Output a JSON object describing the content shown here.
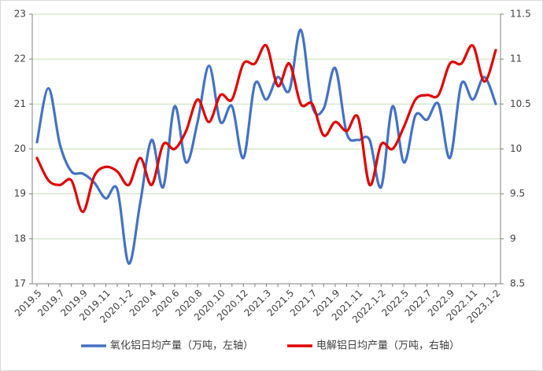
{
  "chart_data": {
    "type": "line",
    "categories": [
      "2019.5",
      null,
      "2019.7",
      null,
      "2019.9",
      null,
      "2019.11",
      null,
      "2020.1-2",
      null,
      "2020.4",
      null,
      "2020.6",
      null,
      "2020.8",
      null,
      "2020.10",
      null,
      "2020.12",
      null,
      "2021.3",
      null,
      "2021.5",
      null,
      "2021.7",
      null,
      "2021.9",
      null,
      "2021.11",
      null,
      "2022.1-2",
      null,
      "2022.5",
      null,
      "2022.7",
      null,
      "2022.9",
      null,
      "2022.11",
      null,
      "2023.1-2"
    ],
    "series": [
      {
        "name": "氧化铝日均产量（万吨，左轴）",
        "color": "#4472c4",
        "axis": "y",
        "values": [
          20.15,
          21.35,
          20.1,
          19.5,
          19.45,
          19.25,
          18.9,
          19.1,
          17.45,
          18.8,
          20.2,
          19.15,
          20.95,
          19.7,
          20.6,
          21.85,
          20.6,
          20.95,
          19.8,
          21.45,
          21.1,
          21.6,
          21.3,
          22.65,
          20.95,
          20.9,
          21.8,
          20.35,
          20.2,
          20.2,
          19.15,
          20.95,
          19.7,
          20.75,
          20.65,
          21.0,
          19.8,
          21.45,
          21.1,
          21.6,
          21.0
        ]
      },
      {
        "name": "电解铝日均产量（万吨，右轴）",
        "color": "#e00000",
        "axis": "y2",
        "values": [
          9.9,
          9.65,
          9.6,
          9.65,
          9.3,
          9.7,
          9.8,
          9.75,
          9.6,
          9.9,
          9.6,
          10.05,
          10.0,
          10.2,
          10.55,
          10.3,
          10.6,
          10.55,
          10.95,
          10.95,
          11.15,
          10.7,
          10.95,
          10.5,
          10.5,
          10.15,
          10.3,
          10.2,
          10.35,
          9.6,
          10.05,
          10.0,
          10.25,
          10.55,
          10.6,
          10.6,
          10.95,
          10.95,
          11.15,
          10.75,
          11.1
        ]
      }
    ],
    "ylim": [
      17,
      23
    ],
    "yticks": [
      17,
      18,
      19,
      20,
      21,
      22,
      23
    ],
    "y2lim": [
      8.5,
      11.5
    ],
    "y2ticks": [
      8.5,
      9,
      9.5,
      10,
      10.5,
      11,
      11.5
    ],
    "grid": true,
    "legend": "bottom"
  }
}
